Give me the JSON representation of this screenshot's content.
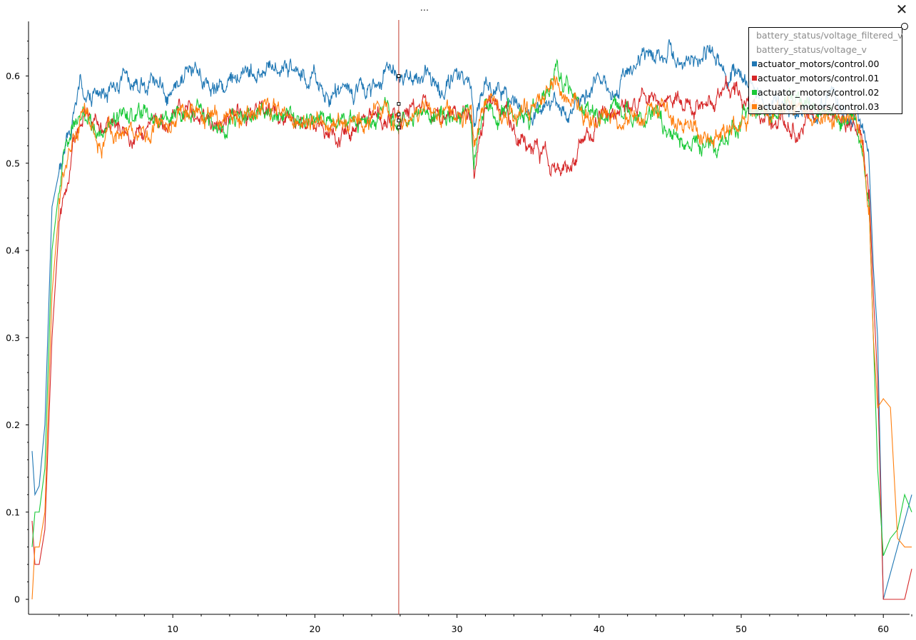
{
  "window": {
    "title": "...",
    "close_icon": "close-icon",
    "close_glyph": "✕"
  },
  "legend_items": [
    {
      "label": "battery_status/voltage_filtered_v",
      "visible": false,
      "color": "#1f77b4"
    },
    {
      "label": "battery_status/voltage_v",
      "visible": false,
      "color": "#d62728"
    },
    {
      "label": "actuator_motors/control.00",
      "visible": true,
      "color": "#1f77b4"
    },
    {
      "label": "actuator_motors/control.01",
      "visible": true,
      "color": "#d62728"
    },
    {
      "label": "actuator_motors/control.02",
      "visible": true,
      "color": "#1ac938"
    },
    {
      "label": "actuator_motors/control.03",
      "visible": true,
      "color": "#ff7f0e"
    }
  ],
  "chart_data": {
    "type": "line",
    "title": "",
    "xlabel": "",
    "ylabel": "",
    "xlim": [
      0,
      62
    ],
    "ylim": [
      0,
      0.65
    ],
    "x_ticks": [
      10,
      20,
      30,
      40,
      50,
      60
    ],
    "x_tick_labels": [
      "10",
      "20",
      "30",
      "40",
      "50",
      "60"
    ],
    "y_ticks": [
      0,
      0.1,
      0.2,
      0.3,
      0.4,
      0.5,
      0.6
    ],
    "y_tick_labels": [
      "0",
      "0.1",
      "0.2",
      "0.3",
      "0.4",
      "0.5",
      "0.6"
    ],
    "grid": false,
    "legend_position": "top-right",
    "cursor_x": 25.9,
    "cursor_color": "#c0392b",
    "x": [
      0.1,
      0.3,
      0.6,
      1.0,
      1.5,
      2.0,
      2.5,
      3.0,
      3.5,
      4.0,
      5.0,
      6.0,
      7.0,
      8.0,
      9.0,
      10.0,
      11.0,
      12.0,
      13.0,
      14.0,
      15.0,
      16.0,
      17.0,
      18.0,
      19.0,
      20.0,
      21.0,
      22.0,
      23.0,
      24.0,
      25.0,
      26.0,
      27.0,
      28.0,
      29.0,
      30.0,
      31.0,
      31.2,
      32.0,
      33.0,
      34.0,
      35.0,
      36.0,
      37.0,
      38.0,
      39.0,
      40.0,
      41.0,
      42.0,
      43.0,
      44.0,
      45.0,
      46.0,
      47.0,
      48.0,
      49.0,
      50.0,
      51.0,
      52.0,
      53.0,
      54.0,
      55.0,
      56.0,
      57.0,
      58.0,
      58.5,
      59.0,
      59.3,
      59.6,
      60.0,
      60.5,
      61.0,
      61.5,
      62.0
    ],
    "series": [
      {
        "name": "actuator_motors/control.00",
        "color": "#1f77b4",
        "values": [
          0.17,
          0.12,
          0.13,
          0.2,
          0.45,
          0.49,
          0.52,
          0.56,
          0.59,
          0.57,
          0.58,
          0.6,
          0.6,
          0.58,
          0.59,
          0.57,
          0.61,
          0.6,
          0.58,
          0.59,
          0.61,
          0.6,
          0.61,
          0.62,
          0.6,
          0.6,
          0.58,
          0.59,
          0.58,
          0.59,
          0.61,
          0.6,
          0.59,
          0.6,
          0.58,
          0.6,
          0.6,
          0.55,
          0.59,
          0.58,
          0.57,
          0.55,
          0.57,
          0.57,
          0.56,
          0.58,
          0.6,
          0.57,
          0.61,
          0.62,
          0.63,
          0.63,
          0.62,
          0.62,
          0.63,
          0.6,
          0.6,
          0.58,
          0.57,
          0.57,
          0.56,
          0.56,
          0.57,
          0.56,
          0.55,
          0.55,
          0.5,
          0.38,
          0.3,
          0.0,
          0.03,
          0.06,
          0.09,
          0.12
        ]
      },
      {
        "name": "actuator_motors/control.01",
        "color": "#d62728",
        "values": [
          0.09,
          0.04,
          0.04,
          0.08,
          0.3,
          0.43,
          0.47,
          0.53,
          0.55,
          0.55,
          0.54,
          0.54,
          0.53,
          0.53,
          0.54,
          0.55,
          0.56,
          0.55,
          0.54,
          0.55,
          0.55,
          0.56,
          0.56,
          0.55,
          0.55,
          0.55,
          0.54,
          0.53,
          0.54,
          0.55,
          0.55,
          0.55,
          0.56,
          0.56,
          0.55,
          0.56,
          0.56,
          0.5,
          0.57,
          0.56,
          0.54,
          0.52,
          0.51,
          0.49,
          0.5,
          0.53,
          0.55,
          0.56,
          0.57,
          0.57,
          0.57,
          0.58,
          0.56,
          0.57,
          0.57,
          0.58,
          0.57,
          0.56,
          0.55,
          0.55,
          0.54,
          0.55,
          0.56,
          0.55,
          0.55,
          0.53,
          0.47,
          0.35,
          0.25,
          0.0,
          0.0,
          0.0,
          0.0,
          0.035
        ]
      },
      {
        "name": "actuator_motors/control.02",
        "color": "#1ac938",
        "values": [
          0.06,
          0.1,
          0.1,
          0.15,
          0.4,
          0.47,
          0.52,
          0.54,
          0.56,
          0.55,
          0.53,
          0.55,
          0.55,
          0.55,
          0.55,
          0.55,
          0.56,
          0.56,
          0.54,
          0.55,
          0.55,
          0.56,
          0.56,
          0.56,
          0.55,
          0.55,
          0.55,
          0.55,
          0.55,
          0.55,
          0.56,
          0.55,
          0.56,
          0.56,
          0.56,
          0.56,
          0.56,
          0.51,
          0.57,
          0.55,
          0.56,
          0.55,
          0.57,
          0.6,
          0.58,
          0.56,
          0.55,
          0.56,
          0.56,
          0.55,
          0.56,
          0.54,
          0.53,
          0.52,
          0.52,
          0.53,
          0.55,
          0.56,
          0.56,
          0.57,
          0.57,
          0.56,
          0.56,
          0.55,
          0.55,
          0.52,
          0.45,
          0.3,
          0.15,
          0.05,
          0.07,
          0.08,
          0.12,
          0.1
        ]
      },
      {
        "name": "actuator_motors/control.03",
        "color": "#ff7f0e",
        "values": [
          0.0,
          0.06,
          0.06,
          0.1,
          0.35,
          0.45,
          0.5,
          0.53,
          0.55,
          0.55,
          0.52,
          0.54,
          0.54,
          0.53,
          0.54,
          0.55,
          0.56,
          0.56,
          0.55,
          0.55,
          0.55,
          0.56,
          0.56,
          0.56,
          0.55,
          0.55,
          0.55,
          0.55,
          0.55,
          0.55,
          0.56,
          0.55,
          0.56,
          0.56,
          0.56,
          0.55,
          0.56,
          0.51,
          0.57,
          0.56,
          0.55,
          0.56,
          0.57,
          0.59,
          0.57,
          0.56,
          0.55,
          0.55,
          0.56,
          0.55,
          0.56,
          0.55,
          0.54,
          0.54,
          0.53,
          0.54,
          0.55,
          0.56,
          0.56,
          0.56,
          0.56,
          0.55,
          0.56,
          0.55,
          0.55,
          0.52,
          0.45,
          0.3,
          0.22,
          0.23,
          0.22,
          0.07,
          0.06,
          0.06
        ]
      }
    ]
  }
}
